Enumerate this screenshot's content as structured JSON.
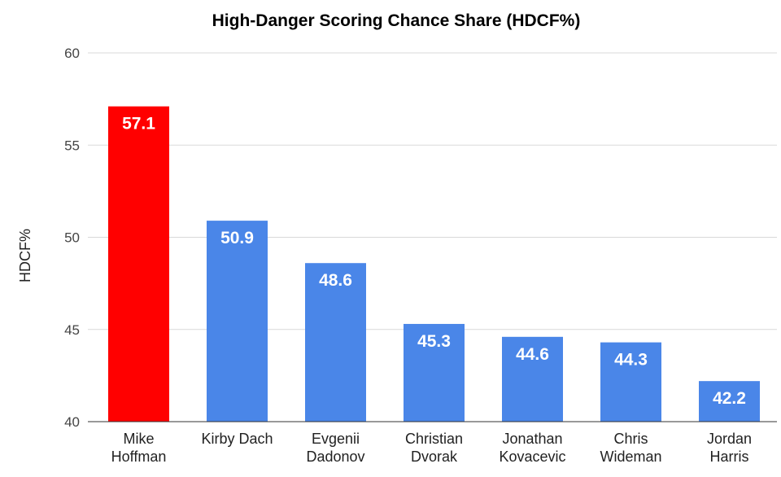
{
  "chart_data": {
    "type": "bar",
    "title": "High-Danger Scoring Chance Share (HDCF%)",
    "xlabel": "",
    "ylabel": "HDCF%",
    "ylim": [
      40,
      60
    ],
    "yticks": [
      40,
      45,
      50,
      55,
      60
    ],
    "grid": true,
    "legend": "none",
    "categories": [
      [
        "Mike",
        "Hoffman"
      ],
      [
        "Kirby Dach"
      ],
      [
        "Evgenii",
        "Dadonov"
      ],
      [
        "Christian",
        "Dvorak"
      ],
      [
        "Jonathan",
        "Kovacevic"
      ],
      [
        "Chris",
        "Wideman"
      ],
      [
        "Jordan",
        "Harris"
      ]
    ],
    "values": [
      57.1,
      50.9,
      48.6,
      45.3,
      44.6,
      44.3,
      42.2
    ],
    "value_labels": [
      "57.1",
      "50.9",
      "48.6",
      "45.3",
      "44.6",
      "44.3",
      "42.2"
    ],
    "bar_colors": [
      "#ff0000",
      "#4a86e8",
      "#4a86e8",
      "#4a86e8",
      "#4a86e8",
      "#4a86e8",
      "#4a86e8"
    ]
  }
}
